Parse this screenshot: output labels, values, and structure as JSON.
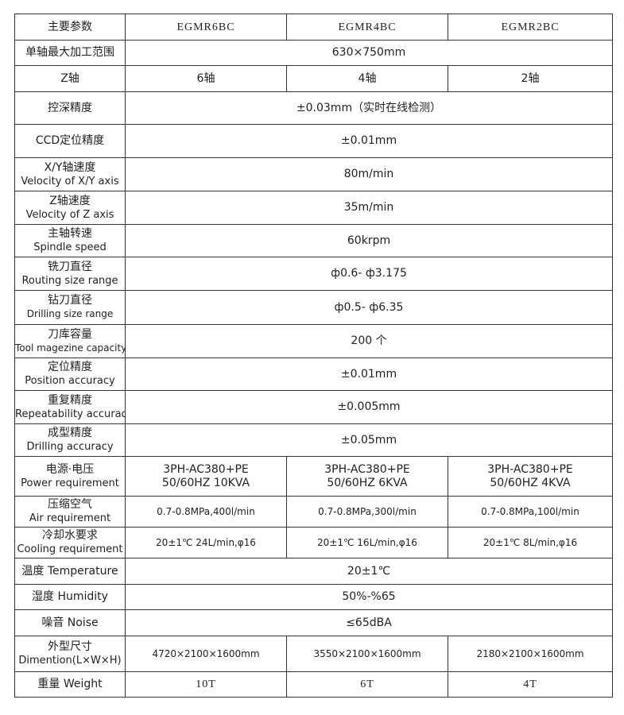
{
  "header": {
    "label": "主要参数",
    "models": [
      "EGMR6BC",
      "EGMR4BC",
      "EGMR2BC"
    ]
  },
  "rows": [
    {
      "label": [
        "单轴最大加工范围"
      ],
      "value": "630×750mm"
    },
    {
      "label": [
        "Z轴"
      ],
      "values": [
        "6轴",
        "4轴",
        "2轴"
      ]
    },
    {
      "label": [
        "控深精度"
      ],
      "value": "±0.03mm（实时在线检测）"
    },
    {
      "label": [
        "CCD定位精度"
      ],
      "value": "±0.01mm"
    },
    {
      "label": [
        "X/Y轴速度",
        "Velocity  of  X/Y axis"
      ],
      "value": "80m/min"
    },
    {
      "label": [
        "Z轴速度",
        "Velocity of Z axis"
      ],
      "value": "35m/min"
    },
    {
      "label": [
        "主轴转速",
        "Spindle speed"
      ],
      "value": "60krpm"
    },
    {
      "label": [
        "铣刀直径",
        "Routing size range"
      ],
      "value": "ф0.6- ф3.175"
    },
    {
      "label": [
        "钻刀直径",
        "Drilling size range"
      ],
      "value": "ф0.5- ф6.35"
    },
    {
      "label": [
        "刀库容量",
        "Tool magezine capacity"
      ],
      "value": "200 个"
    },
    {
      "label": [
        "定位精度",
        "Position accuracy"
      ],
      "value": "±0.01mm"
    },
    {
      "label": [
        "重复精度",
        "Repeatability accuracy"
      ],
      "value": "±0.005mm"
    },
    {
      "label": [
        "成型精度",
        "Drilling accuracy"
      ],
      "value": "±0.05mm"
    },
    {
      "label": [
        "电源·电压",
        "Power requirement"
      ],
      "values": [
        [
          "3PH-AC380+PE",
          "50/60HZ 10KVA"
        ],
        [
          "3PH-AC380+PE",
          "50/60HZ 6KVA"
        ],
        [
          "3PH-AC380+PE",
          "50/60HZ 4KVA"
        ]
      ]
    },
    {
      "label": [
        "压缩空气",
        "Air requirement"
      ],
      "values": [
        "0.7-0.8MPa,400l/min",
        "0.7-0.8MPa,300l/min",
        "0.7-0.8MPa,100l/min"
      ]
    },
    {
      "label": [
        "冷却水要求",
        "Cooling requirement"
      ],
      "values": [
        "20±1℃ 24L/min,φ16",
        "20±1℃ 16L/min,φ16",
        "20±1℃ 8L/min,φ16"
      ]
    },
    {
      "label": [
        "温度 Temperature"
      ],
      "value": "20±1℃"
    },
    {
      "label": [
        "湿度 Humidity"
      ],
      "value": "50%-%65"
    },
    {
      "label": [
        "噪音 Noise"
      ],
      "value": "≤65dBA"
    },
    {
      "label": [
        "外型尺寸",
        "Dimention(L×W×H)"
      ],
      "values": [
        "4720×2100×1600mm",
        "3550×2100×1600mm",
        "2180×2100×1600mm"
      ]
    },
    {
      "label": [
        "重量 Weight"
      ],
      "values": [
        "10T",
        "6T",
        "4T"
      ]
    }
  ]
}
